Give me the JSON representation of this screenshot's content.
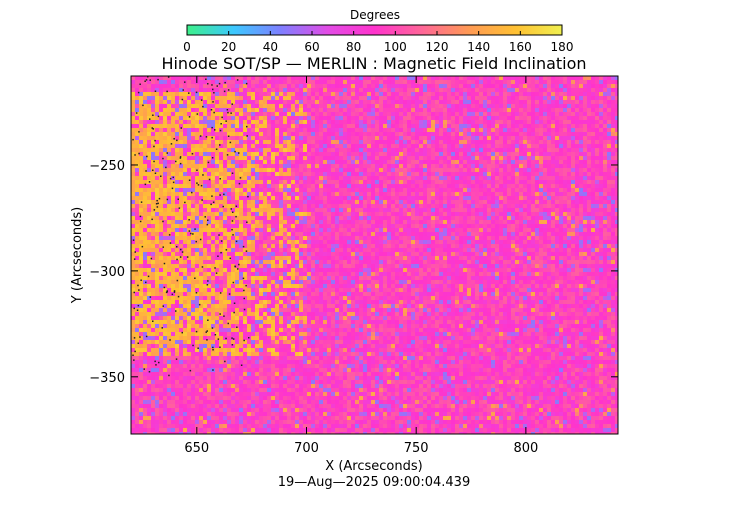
{
  "chart_data": {
    "type": "heatmap",
    "title": "Hinode SOT/SP — MERLIN : Magnetic Field Inclination",
    "xlabel": "X (Arcseconds)",
    "ylabel": "Y (Arcseconds)",
    "timestamp": "19—Aug—2025 09:00:04.439",
    "xlim": [
      620,
      842
    ],
    "ylim": [
      -377,
      -208
    ],
    "x_ticks": [
      650,
      700,
      750,
      800
    ],
    "y_ticks": [
      -250,
      -300,
      -350
    ],
    "grid": false,
    "colorbar": {
      "title": "Degrees",
      "range": [
        0,
        180
      ],
      "ticks": [
        0,
        20,
        40,
        60,
        80,
        100,
        120,
        140,
        160,
        180
      ],
      "colors": [
        "#3cf08a",
        "#3cc8ff",
        "#7f7fff",
        "#e24ce6",
        "#ff33cc",
        "#ff6699",
        "#ff9955",
        "#ffc033",
        "#f0f050"
      ],
      "placement": "top"
    },
    "field_summary": {
      "dominant_value_deg": 95,
      "high_inclination_region": {
        "x": [
          620,
          700
        ],
        "y": [
          -340,
          -215
        ],
        "value_deg": 150
      },
      "low_inclination_patches_deg": 55
    }
  }
}
